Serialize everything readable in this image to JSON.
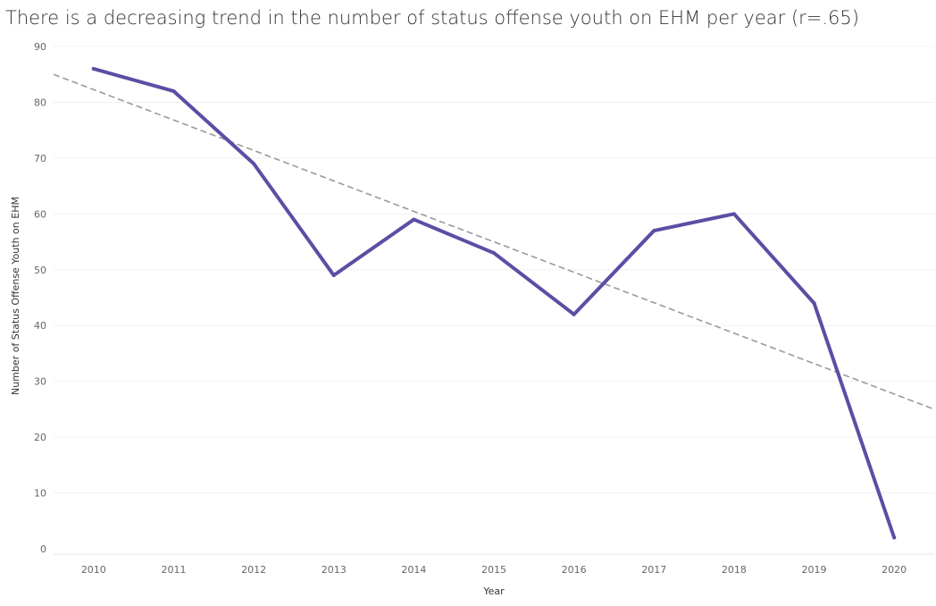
{
  "chart_data": {
    "type": "line",
    "title": "There is a decreasing trend in the number of status offense youth on EHM per year (r=.65)",
    "xlabel": "Year",
    "ylabel": "Number of Status Offense Youth on EHM",
    "categories": [
      "2010",
      "2011",
      "2012",
      "2013",
      "2014",
      "2015",
      "2016",
      "2017",
      "2018",
      "2019",
      "2020"
    ],
    "series": [
      {
        "values": [
          86,
          82,
          69,
          49,
          59,
          53,
          42,
          57,
          60,
          44,
          2
        ],
        "color": "#5b4ea4"
      }
    ],
    "trendline": {
      "style": "dashed",
      "color": "#9a9a9a",
      "start": {
        "x": 2009.5,
        "y": 85
      },
      "end": {
        "x": 2020.5,
        "y": 25
      }
    },
    "ylim": [
      0,
      90
    ],
    "yticks": [
      0,
      10,
      20,
      30,
      40,
      50,
      60,
      70,
      80,
      90
    ],
    "grid": true
  }
}
